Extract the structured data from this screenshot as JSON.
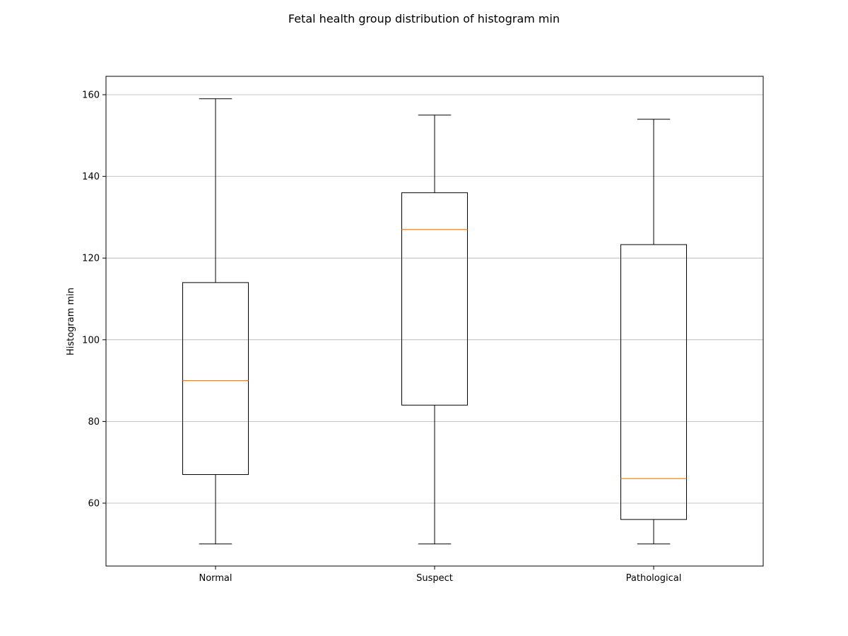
{
  "chart_data": {
    "type": "box",
    "title": "Fetal health group distribution of histogram min",
    "xlabel": "",
    "ylabel": "Histogram min",
    "categories": [
      "Normal",
      "Suspect",
      "Pathological"
    ],
    "boxes": [
      {
        "min": 50,
        "q1": 67,
        "median": 90,
        "q3": 114,
        "max": 159
      },
      {
        "min": 50,
        "q1": 84,
        "median": 127,
        "q3": 136,
        "max": 155
      },
      {
        "min": 50,
        "q1": 56,
        "median": 66,
        "q3": 123.3,
        "max": 154
      }
    ],
    "ylim": [
      44.6,
      164.5
    ],
    "yticks": [
      60,
      80,
      100,
      120,
      140,
      160
    ],
    "grid": {
      "y": true,
      "x": false
    },
    "colors": {
      "box": "#000000",
      "median": "#ff7f0e",
      "grid": "#b0b0b0"
    }
  }
}
